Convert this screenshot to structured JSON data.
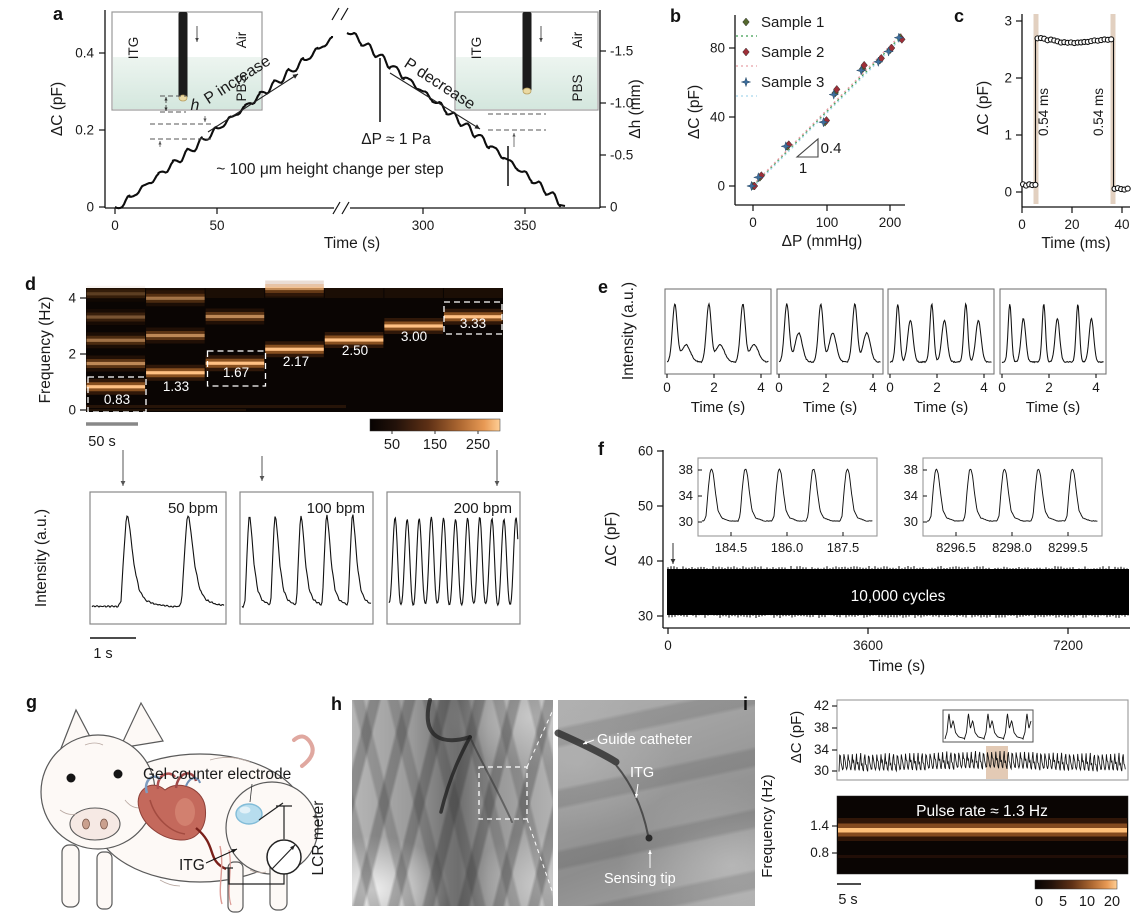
{
  "figure": {
    "panel_labels": {
      "a": "a",
      "b": "b",
      "c": "c",
      "d": "d",
      "e": "e",
      "f": "f",
      "g": "g",
      "h": "h",
      "i": "i"
    }
  },
  "panel_a": {
    "ylabel_left": "ΔC (pF)",
    "ylabel_right": "Δh (mm)",
    "xlabel": "Time (s)",
    "yticks_left": [
      "0",
      "0.2",
      "0.4"
    ],
    "yticks_right": [
      "0",
      "-0.5",
      "-1.0",
      "-1.5"
    ],
    "xticks": [
      "0",
      "50",
      "300",
      "350"
    ],
    "annotations": {
      "increase": "P increase",
      "decrease": "P decrease",
      "dp": "ΔP ≈ 1 Pa",
      "step_note": "~ 100 μm height change per step",
      "h": "h"
    },
    "inset": {
      "device": "ITG",
      "top": "Air",
      "liquid": "PBS"
    }
  },
  "panel_b": {
    "ylabel": "ΔC (pF)",
    "xlabel": "ΔP (mmHg)",
    "yticks": [
      "0",
      "40",
      "80"
    ],
    "xticks": [
      "0",
      "100",
      "200"
    ],
    "legend": [
      "Sample 1",
      "Sample 2",
      "Sample 3"
    ],
    "slope_rise": "0.4",
    "slope_run": "1"
  },
  "panel_c": {
    "ylabel": "ΔC (pF)",
    "xlabel": "Time (ms)",
    "yticks": [
      "0",
      "1",
      "2",
      "3"
    ],
    "xticks": [
      "0",
      "20",
      "40"
    ],
    "rise_label": "0.54 ms",
    "fall_label": "0.54 ms"
  },
  "panel_d": {
    "ylabel": "Frequency (Hz)",
    "yticks": [
      "0",
      "2",
      "4"
    ],
    "scalebar": "50 s",
    "colorbar_ticks": [
      "50",
      "150",
      "250"
    ],
    "band_labels": [
      "0.83",
      "1.33",
      "1.67",
      "2.17",
      "2.50",
      "3.00",
      "3.33"
    ],
    "sub_ylabel": "Intensity (a.u.)",
    "sub_scalebar": "1 s",
    "sub_labels": [
      "50 bpm",
      "100 bpm",
      "200 bpm"
    ]
  },
  "panel_e": {
    "ylabel": "Intensity (a.u.)",
    "xlabel": "Time (s)",
    "xticks": [
      "0",
      "2",
      "4"
    ]
  },
  "panel_f": {
    "ylabel": "ΔC (pF)",
    "xlabel": "Time (s)",
    "yticks": [
      "30",
      "40",
      "50",
      "60"
    ],
    "xticks": [
      "0",
      "3600",
      "7200"
    ],
    "cycles": "10,000 cycles",
    "inset1": {
      "yticks": [
        "30",
        "34",
        "38"
      ],
      "xticks": [
        "184.5",
        "186.0",
        "187.5"
      ]
    },
    "inset2": {
      "yticks": [
        "30",
        "34",
        "38"
      ],
      "xticks": [
        "8296.5",
        "8298.0",
        "8299.5"
      ]
    }
  },
  "panel_g": {
    "labels": {
      "electrode": "Gel counter electrode",
      "itg": "ITG",
      "meter": "LCR meter"
    }
  },
  "panel_h": {
    "labels": {
      "catheter": "Guide catheter",
      "itg": "ITG",
      "tip": "Sensing tip"
    }
  },
  "panel_i": {
    "ylabel_top": "ΔC (pF)",
    "yticks_top": [
      "42",
      "38",
      "34",
      "30"
    ],
    "ylabel_bottom": "Frequency (Hz)",
    "yticks_bottom": [
      "1.4",
      "0.8"
    ],
    "pulse_label": "Pulse rate ≈ 1.3 Hz",
    "scalebar": "5 s",
    "colorbar_ticks": [
      "0",
      "5",
      "10",
      "20"
    ]
  },
  "chart_data": [
    {
      "id": "a",
      "type": "line",
      "xlabel": "Time (s)",
      "x_break_between_s": [
        108,
        280
      ],
      "xlim_s": [
        [
          0,
          108
        ],
        [
          280,
          360
        ]
      ],
      "ylim_left_pF": [
        0,
        0.5
      ],
      "ylim_right_mm": [
        0,
        -1.75
      ],
      "peak_pF": 0.46,
      "steps_up": 15,
      "steps_down": 15,
      "step_height_pF": 0.031,
      "pressure_step_Pa": 1,
      "height_change_per_step_um": 100
    },
    {
      "id": "b",
      "type": "scatter",
      "xlabel": "ΔP (mmHg)",
      "ylabel": "ΔC (pF)",
      "xlim": [
        0,
        220
      ],
      "ylim": [
        0,
        90
      ],
      "slope_pF_per_mmHg": 0.4,
      "x": [
        0,
        10,
        50,
        105,
        120,
        160,
        185,
        200,
        215
      ],
      "series": [
        {
          "name": "Sample 1",
          "marker_color": "#55682e",
          "line_color": "#3f9e52",
          "y": [
            0,
            5,
            23,
            37,
            54,
            68,
            73,
            79,
            86
          ]
        },
        {
          "name": "Sample 2",
          "marker_color": "#9e2f38",
          "line_color": "#e8a0a8",
          "y": [
            0,
            6,
            24,
            38,
            56,
            70,
            74,
            80,
            85
          ]
        },
        {
          "name": "Sample 3",
          "marker_color": "#3e6f9e",
          "line_color": "#a8d8ec",
          "y": [
            0,
            5,
            23,
            37,
            53,
            67,
            72,
            78,
            86
          ]
        }
      ]
    },
    {
      "id": "c",
      "type": "line",
      "xlabel": "Time (ms)",
      "ylabel": "ΔC (pF)",
      "xlim": [
        0,
        43
      ],
      "ylim": [
        0,
        3.1
      ],
      "low_pF": 0.13,
      "high_pF": 2.7,
      "rise_at_ms": 5.5,
      "fall_at_ms": 37,
      "rise_time_ms": 0.54,
      "fall_time_ms": 0.54
    },
    {
      "id": "d_spectrogram",
      "type": "heatmap",
      "ylabel": "Frequency (Hz)",
      "ylim_Hz": [
        0,
        4.4
      ],
      "segment_fundamentals_Hz": [
        0.83,
        1.33,
        1.67,
        2.17,
        2.5,
        3.0,
        3.33
      ],
      "boxed_Hz": [
        0.83,
        1.67,
        3.33
      ],
      "colorbar_range": [
        50,
        250
      ],
      "scalebar_s": 50
    },
    {
      "id": "d_pulses",
      "type": "line",
      "bpm": [
        50,
        100,
        200
      ],
      "pulse_counts": [
        2,
        5,
        11
      ],
      "scalebar_s": 1
    },
    {
      "id": "e",
      "type": "line",
      "windows": 4,
      "xlim_s": [
        0,
        4.5
      ],
      "pulses_per_window": 3,
      "pulse_period_s": 1.5
    },
    {
      "id": "f",
      "type": "line",
      "xlim_s": [
        0,
        8300
      ],
      "ylim_pF": [
        30,
        60
      ],
      "band_pF": [
        30,
        38.5
      ],
      "cycles": 10000,
      "insets": [
        {
          "xlim_s": [
            183.8,
            187.9
          ],
          "peaks": 5
        },
        {
          "xlim_s": [
            8295.8,
            8299.9
          ],
          "peaks": 5
        }
      ]
    },
    {
      "id": "i_trace",
      "type": "line",
      "ylim_pF": [
        30,
        42
      ],
      "osc_range_pF": [
        30.5,
        33.8
      ]
    },
    {
      "id": "i_spectrogram",
      "type": "heatmap",
      "ylim_Hz": [
        0.5,
        1.75
      ],
      "pulse_rate_Hz": 1.3,
      "colorbar_range": [
        0,
        20
      ]
    }
  ]
}
